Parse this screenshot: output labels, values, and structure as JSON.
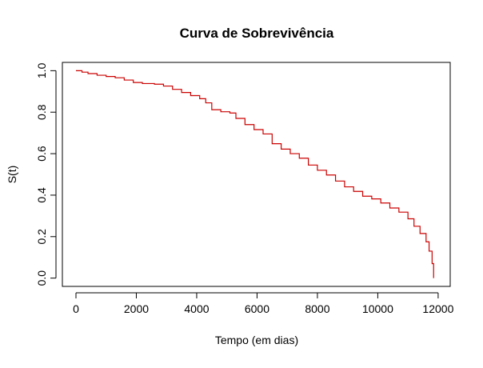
{
  "chart_data": {
    "type": "line",
    "step": true,
    "title": "Curva de Sobrevivência",
    "xlabel": "Tempo (em dias)",
    "ylabel": "S(t)",
    "xlim": [
      -450,
      12400
    ],
    "ylim": [
      -0.04,
      1.04
    ],
    "xticks": [
      0,
      2000,
      4000,
      6000,
      8000,
      10000,
      12000
    ],
    "xtick_labels": [
      "0",
      "2000",
      "4000",
      "6000",
      "8000",
      "10000",
      "12000"
    ],
    "yticks": [
      0.0,
      0.2,
      0.4,
      0.6,
      0.8,
      1.0
    ],
    "ytick_labels": [
      "0.0",
      "0.2",
      "0.4",
      "0.6",
      "0.8",
      "1.0"
    ],
    "grid": false,
    "legend": "none",
    "series": [
      {
        "color": "#cc0000",
        "points": [
          [
            0,
            1.0
          ],
          [
            200,
            0.993
          ],
          [
            400,
            0.986
          ],
          [
            700,
            0.978
          ],
          [
            1000,
            0.972
          ],
          [
            1300,
            0.966
          ],
          [
            1600,
            0.955
          ],
          [
            1900,
            0.943
          ],
          [
            2200,
            0.938
          ],
          [
            2600,
            0.935
          ],
          [
            2900,
            0.926
          ],
          [
            3200,
            0.91
          ],
          [
            3500,
            0.895
          ],
          [
            3800,
            0.88
          ],
          [
            4100,
            0.865
          ],
          [
            4300,
            0.845
          ],
          [
            4500,
            0.812
          ],
          [
            4800,
            0.802
          ],
          [
            5100,
            0.796
          ],
          [
            5300,
            0.77
          ],
          [
            5600,
            0.74
          ],
          [
            5900,
            0.716
          ],
          [
            6200,
            0.695
          ],
          [
            6500,
            0.648
          ],
          [
            6800,
            0.622
          ],
          [
            7100,
            0.6
          ],
          [
            7400,
            0.578
          ],
          [
            7700,
            0.545
          ],
          [
            8000,
            0.52
          ],
          [
            8300,
            0.497
          ],
          [
            8600,
            0.468
          ],
          [
            8900,
            0.44
          ],
          [
            9200,
            0.418
          ],
          [
            9500,
            0.395
          ],
          [
            9800,
            0.382
          ],
          [
            10100,
            0.362
          ],
          [
            10400,
            0.338
          ],
          [
            10700,
            0.318
          ],
          [
            11000,
            0.286
          ],
          [
            11200,
            0.25
          ],
          [
            11400,
            0.215
          ],
          [
            11600,
            0.175
          ],
          [
            11700,
            0.13
          ],
          [
            11800,
            0.07
          ],
          [
            11850,
            0.0
          ]
        ]
      }
    ]
  }
}
